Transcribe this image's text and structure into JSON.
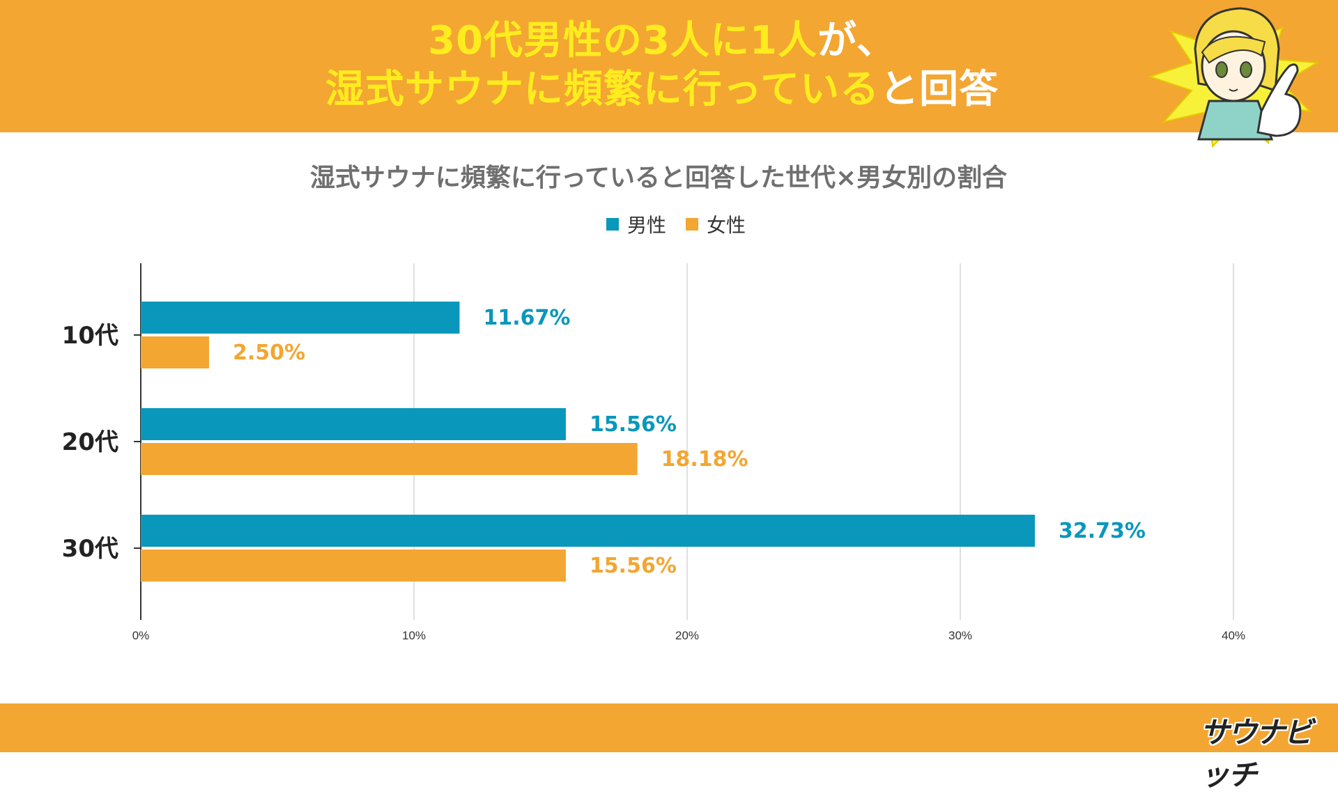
{
  "header": {
    "line1_highlight": "30代男性の3人に1人",
    "line1_rest": "が、",
    "line2_highlight": "湿式サウナに頻繁に行っている",
    "line2_rest": "と回答"
  },
  "logo": {
    "text": "サウナビッチ"
  },
  "colors": {
    "banner": "#f3a631",
    "male": "#0a97bc",
    "female": "#f3a631",
    "headline_yellow": "#ffec1f"
  },
  "chart_data": {
    "type": "bar",
    "orientation": "horizontal",
    "title": "湿式サウナに頻繁に行っていると回答した世代×男女別の割合",
    "categories": [
      "10代",
      "20代",
      "30代"
    ],
    "series": [
      {
        "name": "男性",
        "values": [
          11.67,
          15.56,
          32.73
        ],
        "labels": [
          "11.67%",
          "15.56%",
          "32.73%"
        ]
      },
      {
        "name": "女性",
        "values": [
          2.5,
          18.18,
          15.56
        ],
        "labels": [
          "2.50%",
          "18.18%",
          "15.56%"
        ]
      }
    ],
    "xlim": [
      0,
      40
    ],
    "xticks": [
      0,
      10,
      20,
      30,
      40
    ],
    "xtick_labels": [
      "0%",
      "10%",
      "20%",
      "30%",
      "40%"
    ],
    "grid": true,
    "legend": "top-center",
    "xlabel": "",
    "ylabel": ""
  }
}
